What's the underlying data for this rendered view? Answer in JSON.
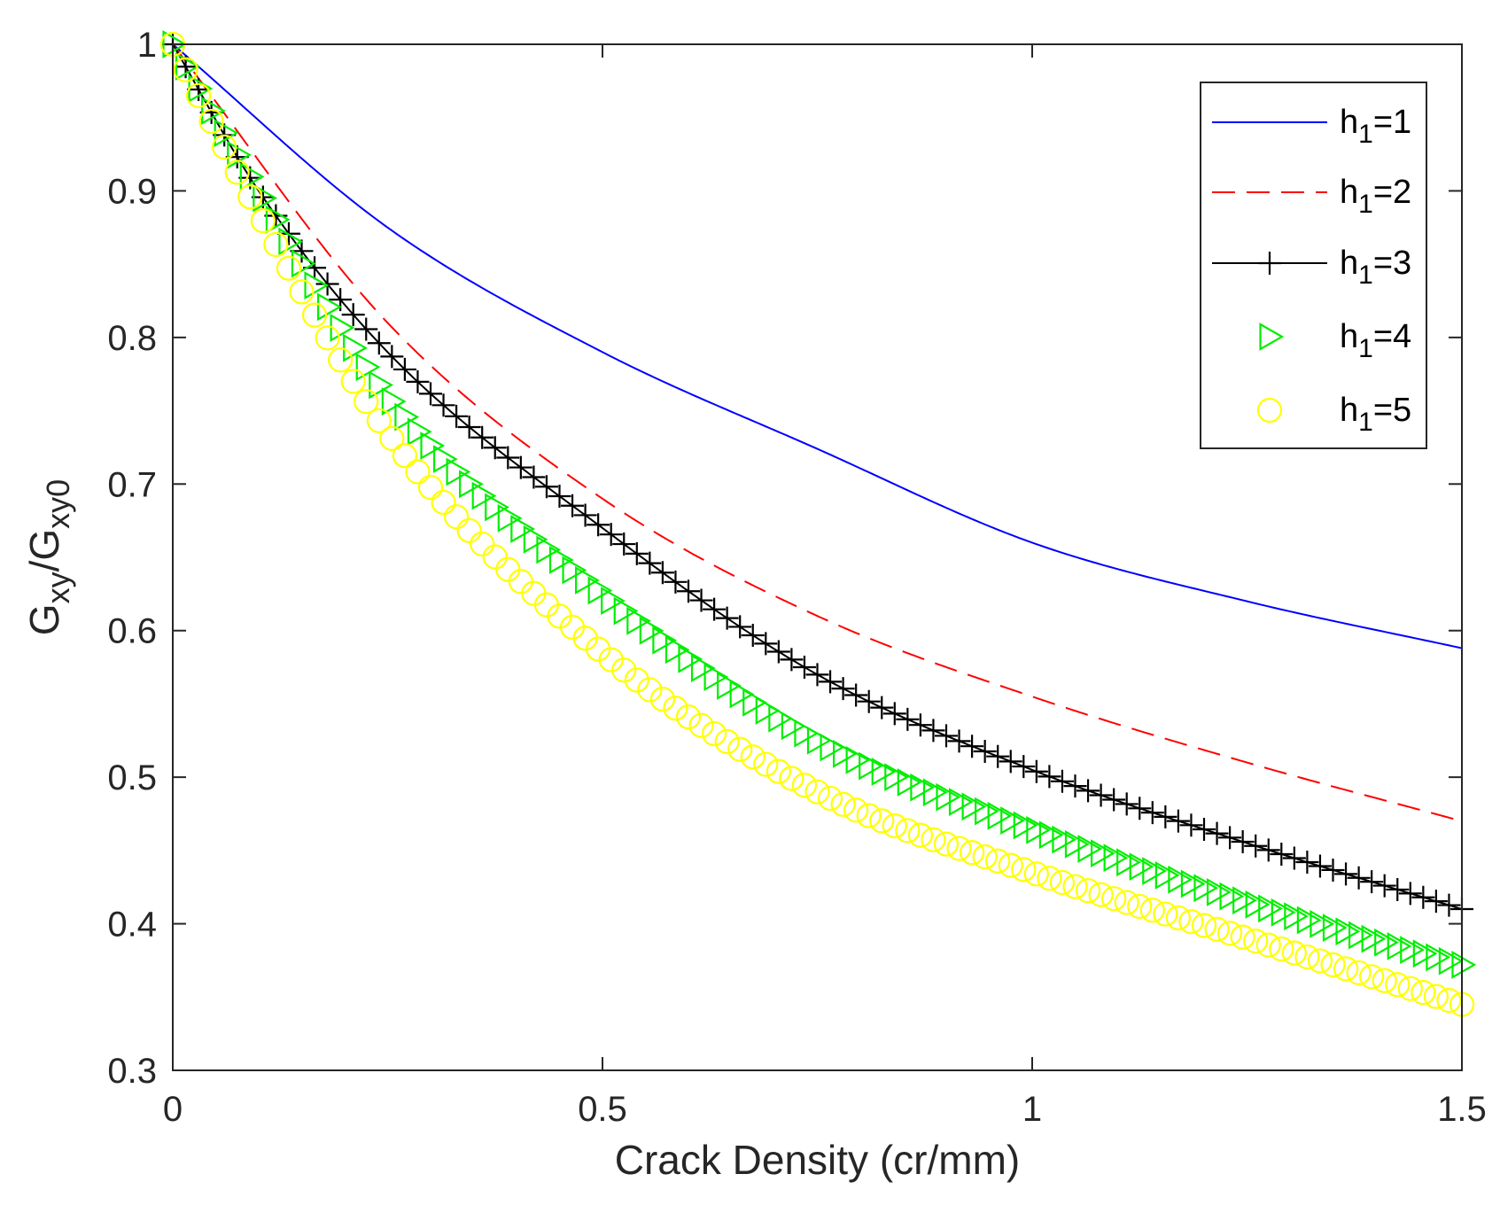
{
  "chart_data": {
    "type": "line",
    "title": "",
    "xlabel": "Crack Density (cr/mm)",
    "ylabel": {
      "base1": "G",
      "sub1": "xy",
      "sep": "/",
      "base2": "G",
      "sub2": "xy0"
    },
    "xlim": [
      0,
      1.5
    ],
    "ylim": [
      0.3,
      1.0
    ],
    "xticks": [
      0,
      0.5,
      1,
      1.5
    ],
    "xtick_labels": [
      "0",
      "0.5",
      "1",
      "1.5"
    ],
    "yticks": [
      0.3,
      0.4,
      0.5,
      0.6,
      0.7,
      0.8,
      0.9,
      1.0
    ],
    "ytick_labels": [
      "0.3",
      "0.4",
      "0.5",
      "0.6",
      "0.7",
      "0.8",
      "0.9",
      "1"
    ],
    "grid": false,
    "legend_position": "top-right",
    "sample_x": {
      "start": 0,
      "end": 1.5,
      "step": 0.015
    },
    "series": [
      {
        "name": "h_1=1",
        "label_base": "h",
        "label_sub": "1",
        "label_rest": "=1",
        "color": "#0000ff",
        "style": "solid",
        "marker": "none",
        "x": [
          0,
          0.25,
          0.5,
          0.75,
          1.0,
          1.25,
          1.5
        ],
        "y": [
          1.0,
          0.875,
          0.79,
          0.724,
          0.66,
          0.62,
          0.588
        ]
      },
      {
        "name": "h_1=2",
        "label_base": "h",
        "label_sub": "1",
        "label_rest": "=2",
        "color": "#ff0000",
        "style": "dashed",
        "marker": "none",
        "x": [
          0,
          0.25,
          0.5,
          0.75,
          1.0,
          1.25,
          1.5
        ],
        "y": [
          1.0,
          0.81,
          0.69,
          0.61,
          0.555,
          0.51,
          0.47
        ]
      },
      {
        "name": "h_1=3",
        "label_base": "h",
        "label_sub": "1",
        "label_rest": "=3",
        "color": "#000000",
        "style": "solid",
        "marker": "plus",
        "x": [
          0,
          0.1,
          0.25,
          0.5,
          0.75,
          1.0,
          1.25,
          1.5
        ],
        "y": [
          1.0,
          0.9,
          0.79,
          0.67,
          0.57,
          0.505,
          0.455,
          0.41
        ]
      },
      {
        "name": "h_1=4",
        "label_base": "h",
        "label_sub": "1",
        "label_rest": "=4",
        "color": "#00ee00",
        "style": "none",
        "marker": "triangle-right",
        "x": [
          0,
          0.1,
          0.25,
          0.5,
          0.75,
          1.0,
          1.25,
          1.5
        ],
        "y": [
          1.0,
          0.9,
          0.76,
          0.625,
          0.525,
          0.465,
          0.415,
          0.372
        ]
      },
      {
        "name": "h_1=5",
        "label_base": "h",
        "label_sub": "1",
        "label_rest": "=5",
        "color": "#ffff00",
        "style": "none",
        "marker": "circle",
        "x": [
          0,
          0.1,
          0.25,
          0.5,
          0.75,
          1.0,
          1.25,
          1.5
        ],
        "y": [
          1.0,
          0.885,
          0.735,
          0.585,
          0.49,
          0.435,
          0.39,
          0.345
        ]
      }
    ]
  }
}
